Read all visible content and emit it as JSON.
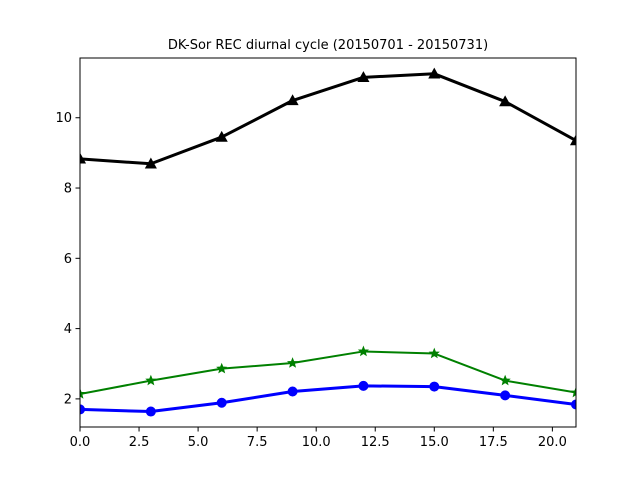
{
  "chart_data": {
    "type": "line",
    "title": "DK-Sor REC diurnal cycle (20150701 - 20150731)",
    "xlabel": "",
    "ylabel": "",
    "xlim": [
      0,
      21
    ],
    "ylim": [
      1.2,
      11.7
    ],
    "x_ticks": [
      0.0,
      2.5,
      5.0,
      7.5,
      10.0,
      12.5,
      15.0,
      17.5,
      20.0
    ],
    "x_tick_labels": [
      "0.0",
      "2.5",
      "5.0",
      "7.5",
      "10.0",
      "12.5",
      "15.0",
      "17.5",
      "20.0"
    ],
    "y_ticks": [
      2,
      4,
      6,
      8,
      10
    ],
    "y_tick_labels": [
      "2",
      "4",
      "6",
      "8",
      "10"
    ],
    "grid": false,
    "x": [
      0,
      3,
      6,
      9,
      12,
      15,
      18,
      21
    ],
    "series": [
      {
        "color": "#000000",
        "marker": "triangle",
        "line_width": "thick",
        "values": [
          8.83,
          8.69,
          9.45,
          10.49,
          11.15,
          11.25,
          10.46,
          9.35
        ]
      },
      {
        "color": "#008000",
        "marker": "star",
        "line_width": "medium",
        "values": [
          2.14,
          2.52,
          2.86,
          3.02,
          3.35,
          3.29,
          2.52,
          2.18
        ]
      },
      {
        "color": "#0000ff",
        "marker": "circle",
        "line_width": "thick",
        "values": [
          1.7,
          1.64,
          1.89,
          2.21,
          2.37,
          2.35,
          2.1,
          1.84
        ]
      }
    ]
  }
}
